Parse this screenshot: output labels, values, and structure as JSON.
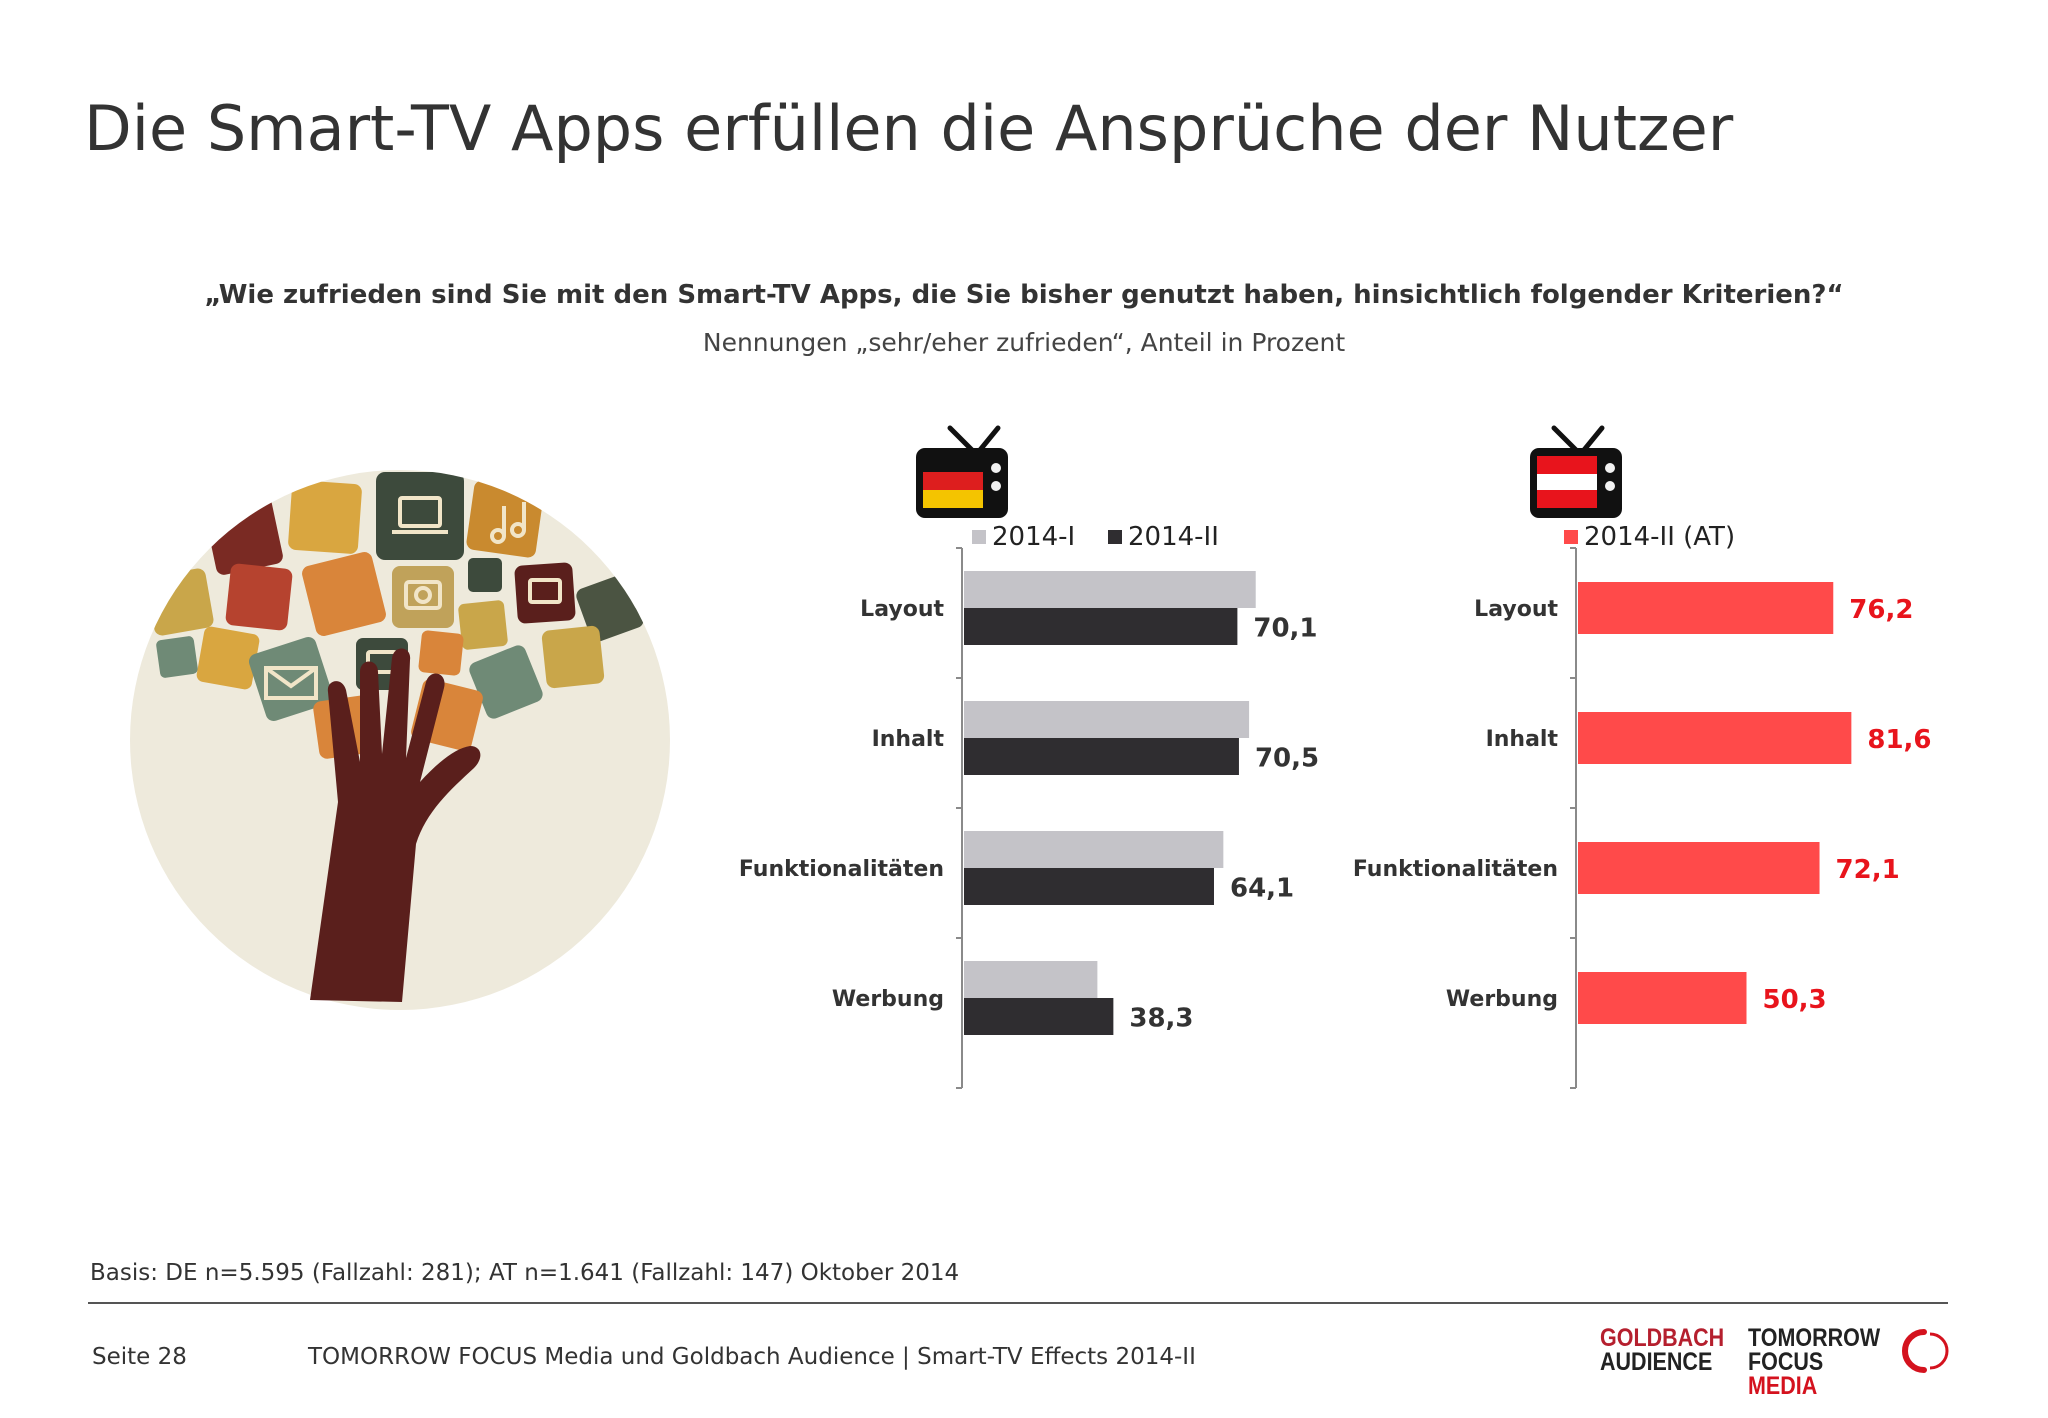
{
  "title": "Die Smart-TV Apps erfüllen die Ansprüche der Nutzer",
  "question": "„Wie zufrieden sind Sie mit den Smart-TV Apps, die Sie bisher genutzt haben, hinsichtlich folgender Kriterien?“",
  "subtitle": "Nennungen „sehr/eher zufrieden“, Anteil in Prozent",
  "colors": {
    "de_2014_i": "#c4c3c8",
    "de_2014_ii": "#2f2d30",
    "at_2014_ii": "#ff4a4a",
    "at_label": "#e8141c"
  },
  "illustration": {
    "icon": "hand-tree-of-app-icons"
  },
  "chart_data": [
    {
      "type": "bar",
      "orientation": "horizontal",
      "flag_icon": "tv-flag-germany-icon",
      "categories": [
        "Layout",
        "Inhalt",
        "Funktionalitäten",
        "Werbung"
      ],
      "series": [
        {
          "name": "2014-I",
          "values": [
            74.8,
            73.1,
            66.5,
            34.2
          ]
        },
        {
          "name": "2014-II",
          "values": [
            70.1,
            70.5,
            64.1,
            38.3
          ]
        }
      ],
      "data_labels": [
        "70,1",
        "70,5",
        "64,1",
        "38,3"
      ],
      "xlim": [
        0,
        100
      ],
      "legend_position": "top"
    },
    {
      "type": "bar",
      "orientation": "horizontal",
      "flag_icon": "tv-flag-austria-icon",
      "categories": [
        "Layout",
        "Inhalt",
        "Funktionalitäten",
        "Werbung"
      ],
      "series": [
        {
          "name": "2014-II (AT)",
          "values": [
            76.2,
            81.6,
            72.1,
            50.3
          ]
        }
      ],
      "data_labels": [
        "76,2",
        "81,6",
        "72,1",
        "50,3"
      ],
      "xlim": [
        0,
        100
      ],
      "legend_position": "top"
    }
  ],
  "basis": "Basis: DE n=5.595 (Fallzahl: 281); AT n=1.641 (Fallzahl: 147) Oktober 2014",
  "footer": {
    "page": "Seite 28",
    "text": "TOMORROW FOCUS Media und Goldbach Audience | Smart-TV Effects 2014-II"
  },
  "logos": {
    "goldbach_line1": "GOLDBACH",
    "goldbach_line2": "AUDIENCE",
    "tfm_line1": "TOMORROW",
    "tfm_line2a": "FOCUS",
    "tfm_line2b": "MEDIA"
  }
}
